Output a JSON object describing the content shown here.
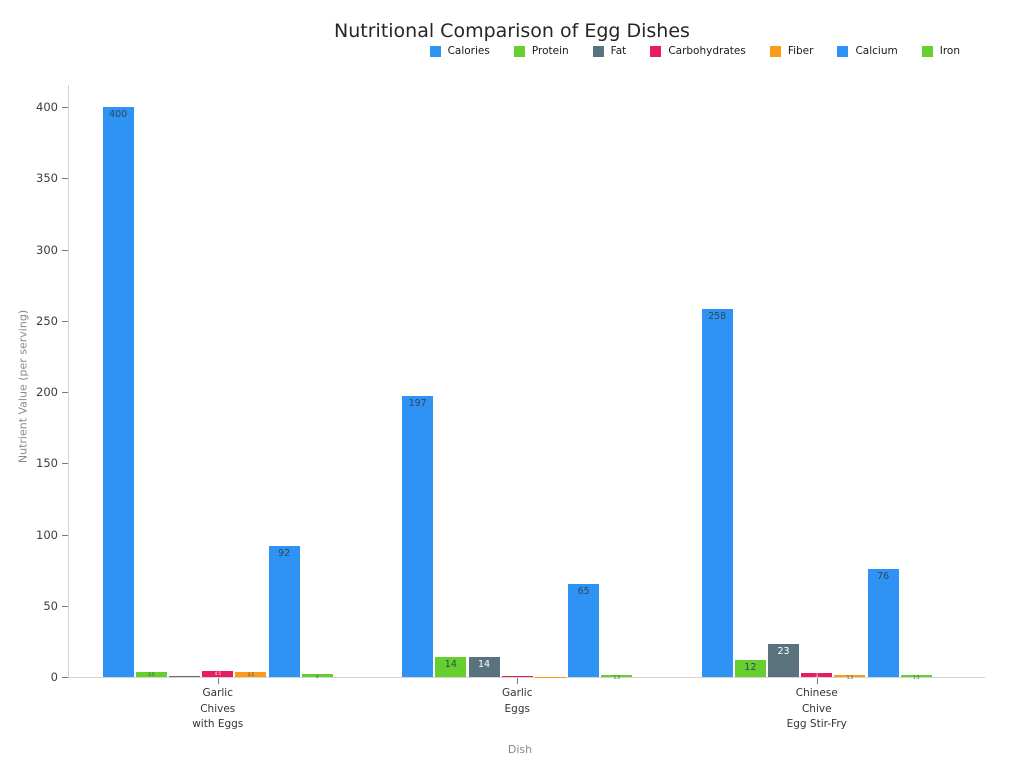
{
  "title": "Nutritional Comparison of Egg Dishes",
  "chart_data": {
    "type": "bar",
    "title": "Nutritional Comparison of Egg Dishes",
    "xlabel": "Dish",
    "ylabel": "Nutrient Value (per serving)",
    "ylim": [
      0,
      400
    ],
    "yticks": [
      0,
      50,
      100,
      150,
      200,
      250,
      300,
      350,
      400
    ],
    "grid": false,
    "legend_position": "top-center",
    "background_color": "#ffffff",
    "categories": [
      "Garlic\nChives\nwith Eggs",
      "Garlic\nEggs",
      "Chinese\nChive\nEgg Stir-Fry"
    ],
    "series": [
      {
        "name": "Calories",
        "color": "#2E93F5",
        "label_color": "#2e4857",
        "values": [
          400,
          197,
          258
        ]
      },
      {
        "name": "Protein",
        "color": "#65CF2D",
        "label_color": "#2e4857",
        "values": [
          3.5,
          14,
          12
        ]
      },
      {
        "name": "Fat",
        "color": "#5A727E",
        "label_color": "#ffffff",
        "values": [
          0.8,
          14,
          23
        ]
      },
      {
        "name": "Carbohydrates",
        "color": "#E91C5F",
        "label_color": "#ffffff",
        "values": [
          4.5,
          1,
          3
        ]
      },
      {
        "name": "Fiber",
        "color": "#F99C1B",
        "label_color": "#2e4857",
        "values": [
          3.5,
          0.3,
          1.5
        ]
      },
      {
        "name": "Calcium",
        "color": "#2E93F5",
        "label_color": "#2e4857",
        "values": [
          92,
          65,
          76
        ]
      },
      {
        "name": "Iron",
        "color": "#65CF2D",
        "label_color": "#2e4857",
        "values": [
          2,
          1.5,
          1.5
        ]
      }
    ]
  }
}
